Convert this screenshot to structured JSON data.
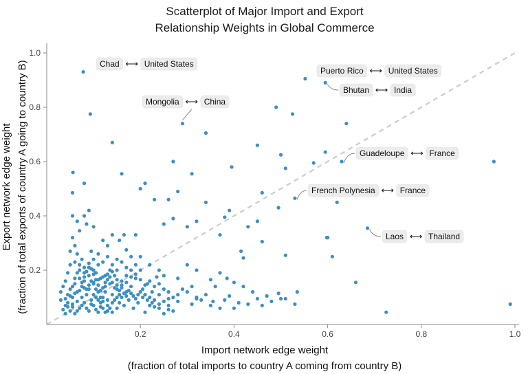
{
  "chart_data": {
    "type": "scatter",
    "title_lines": [
      "Scatterplot of Major Import and Export",
      "Relationship Weights in Global Commerce"
    ],
    "xlabel_lines": [
      "Import network edge weight",
      "(fraction of total imports to country A coming from country B)"
    ],
    "ylabel_lines": [
      "Export network edge weight",
      "(fraction of total exports of country A going to country B)"
    ],
    "xlim": [
      0,
      1.0
    ],
    "ylim": [
      0,
      1.0
    ],
    "x_ticks": [
      0.2,
      0.4,
      0.6,
      0.8,
      1.0
    ],
    "x_tick_labels": [
      "0.2",
      "0.4",
      "0.6",
      "0.8",
      "1.0"
    ],
    "y_ticks": [
      0.2,
      0.4,
      0.6,
      0.8,
      1.0
    ],
    "y_tick_labels": [
      "0.2",
      "0.4",
      "0.6",
      "0.8",
      "1.0"
    ],
    "reference_line": {
      "style": "dashed",
      "from": [
        0,
        0
      ],
      "to": [
        1,
        1
      ],
      "color": "#cfcfcf"
    },
    "grid": false,
    "point_color": "#3b8fc4",
    "annotations": [
      {
        "from": "Chad",
        "to": "United States",
        "x": 0.078,
        "y": 0.93
      },
      {
        "from": "Puerto Rico",
        "to": "United States",
        "x": 0.552,
        "y": 0.905
      },
      {
        "from": "Bhutan",
        "to": "India",
        "x": 0.595,
        "y": 0.89
      },
      {
        "from": "Mongolia",
        "to": "China",
        "x": 0.29,
        "y": 0.74
      },
      {
        "from": "Guadeloupe",
        "to": "France",
        "x": 0.63,
        "y": 0.6
      },
      {
        "from": "French Polynesia",
        "to": "France",
        "x": 0.53,
        "y": 0.465
      },
      {
        "from": "Laos",
        "to": "Thailand",
        "x": 0.685,
        "y": 0.355
      }
    ],
    "arrow_glyph": "⟷",
    "points": [
      [
        0.078,
        0.93
      ],
      [
        0.552,
        0.905
      ],
      [
        0.595,
        0.89
      ],
      [
        0.29,
        0.74
      ],
      [
        0.63,
        0.6
      ],
      [
        0.53,
        0.465
      ],
      [
        0.685,
        0.355
      ],
      [
        0.093,
        0.775
      ],
      [
        0.14,
        0.67
      ],
      [
        0.49,
        0.8
      ],
      [
        0.525,
        0.775
      ],
      [
        0.34,
        0.705
      ],
      [
        0.64,
        0.74
      ],
      [
        0.955,
        0.6
      ],
      [
        0.57,
        0.595
      ],
      [
        0.595,
        0.635
      ],
      [
        0.45,
        0.66
      ],
      [
        0.5,
        0.625
      ],
      [
        0.51,
        0.575
      ],
      [
        0.395,
        0.58
      ],
      [
        0.27,
        0.6
      ],
      [
        0.056,
        0.56
      ],
      [
        0.16,
        0.555
      ],
      [
        0.31,
        0.555
      ],
      [
        0.21,
        0.52
      ],
      [
        0.2,
        0.5
      ],
      [
        0.08,
        0.52
      ],
      [
        0.055,
        0.485
      ],
      [
        0.46,
        0.485
      ],
      [
        0.28,
        0.49
      ],
      [
        0.23,
        0.46
      ],
      [
        0.26,
        0.46
      ],
      [
        0.34,
        0.45
      ],
      [
        0.495,
        0.43
      ],
      [
        0.62,
        0.45
      ],
      [
        0.39,
        0.42
      ],
      [
        0.38,
        0.395
      ],
      [
        0.09,
        0.42
      ],
      [
        0.08,
        0.4
      ],
      [
        0.055,
        0.4
      ],
      [
        0.065,
        0.38
      ],
      [
        0.07,
        0.345
      ],
      [
        0.085,
        0.37
      ],
      [
        0.1,
        0.36
      ],
      [
        0.27,
        0.39
      ],
      [
        0.25,
        0.37
      ],
      [
        0.32,
        0.38
      ],
      [
        0.3,
        0.36
      ],
      [
        0.45,
        0.38
      ],
      [
        0.6,
        0.32
      ],
      [
        0.598,
        0.32
      ],
      [
        0.43,
        0.36
      ],
      [
        0.37,
        0.33
      ],
      [
        0.46,
        0.305
      ],
      [
        0.51,
        0.255
      ],
      [
        0.61,
        0.25
      ],
      [
        0.415,
        0.27
      ],
      [
        0.42,
        0.245
      ],
      [
        0.66,
        0.155
      ],
      [
        0.725,
        0.045
      ],
      [
        0.99,
        0.075
      ],
      [
        0.51,
        0.095
      ],
      [
        0.535,
        0.12
      ],
      [
        0.53,
        0.075
      ],
      [
        0.44,
        0.12
      ],
      [
        0.36,
        0.14
      ],
      [
        0.35,
        0.165
      ],
      [
        0.37,
        0.19
      ],
      [
        0.385,
        0.17
      ],
      [
        0.4,
        0.155
      ],
      [
        0.42,
        0.14
      ],
      [
        0.39,
        0.105
      ],
      [
        0.43,
        0.075
      ],
      [
        0.46,
        0.07
      ],
      [
        0.495,
        0.115
      ],
      [
        0.5,
        0.095
      ],
      [
        0.355,
        0.085
      ],
      [
        0.32,
        0.095
      ],
      [
        0.31,
        0.075
      ],
      [
        0.28,
        0.085
      ],
      [
        0.26,
        0.095
      ],
      [
        0.24,
        0.11
      ],
      [
        0.225,
        0.12
      ],
      [
        0.215,
        0.15
      ],
      [
        0.235,
        0.175
      ],
      [
        0.25,
        0.18
      ],
      [
        0.28,
        0.17
      ],
      [
        0.3,
        0.22
      ],
      [
        0.32,
        0.2
      ],
      [
        0.24,
        0.2
      ],
      [
        0.22,
        0.22
      ],
      [
        0.18,
        0.25
      ],
      [
        0.15,
        0.24
      ],
      [
        0.17,
        0.275
      ],
      [
        0.13,
        0.29
      ],
      [
        0.12,
        0.31
      ],
      [
        0.14,
        0.33
      ],
      [
        0.155,
        0.31
      ],
      [
        0.165,
        0.33
      ],
      [
        0.19,
        0.33
      ],
      [
        0.2,
        0.2
      ],
      [
        0.19,
        0.17
      ],
      [
        0.18,
        0.14
      ],
      [
        0.17,
        0.12
      ],
      [
        0.16,
        0.1
      ],
      [
        0.155,
        0.08
      ],
      [
        0.15,
        0.06
      ],
      [
        0.14,
        0.045
      ],
      [
        0.13,
        0.07
      ],
      [
        0.12,
        0.1
      ],
      [
        0.11,
        0.12
      ],
      [
        0.1,
        0.15
      ],
      [
        0.09,
        0.18
      ],
      [
        0.08,
        0.21
      ],
      [
        0.075,
        0.24
      ],
      [
        0.065,
        0.26
      ],
      [
        0.06,
        0.29
      ],
      [
        0.055,
        0.32
      ],
      [
        0.05,
        0.22
      ],
      [
        0.045,
        0.19
      ],
      [
        0.04,
        0.16
      ],
      [
        0.035,
        0.14
      ],
      [
        0.03,
        0.12
      ],
      [
        0.03,
        0.09
      ],
      [
        0.04,
        0.07
      ],
      [
        0.05,
        0.05
      ],
      [
        0.06,
        0.04
      ],
      [
        0.07,
        0.06
      ],
      [
        0.08,
        0.08
      ],
      [
        0.09,
        0.05
      ],
      [
        0.1,
        0.07
      ],
      [
        0.11,
        0.045
      ],
      [
        0.12,
        0.06
      ],
      [
        0.13,
        0.09
      ],
      [
        0.14,
        0.11
      ],
      [
        0.15,
        0.13
      ],
      [
        0.16,
        0.16
      ],
      [
        0.17,
        0.18
      ],
      [
        0.18,
        0.2
      ],
      [
        0.19,
        0.22
      ],
      [
        0.2,
        0.25
      ],
      [
        0.11,
        0.22
      ],
      [
        0.1,
        0.24
      ],
      [
        0.095,
        0.27
      ],
      [
        0.105,
        0.19
      ],
      [
        0.115,
        0.17
      ],
      [
        0.125,
        0.14
      ],
      [
        0.135,
        0.2
      ],
      [
        0.145,
        0.18
      ],
      [
        0.055,
        0.1
      ],
      [
        0.065,
        0.12
      ],
      [
        0.075,
        0.14
      ],
      [
        0.085,
        0.11
      ],
      [
        0.095,
        0.09
      ],
      [
        0.105,
        0.1
      ],
      [
        0.115,
        0.08
      ],
      [
        0.125,
        0.12
      ],
      [
        0.135,
        0.15
      ],
      [
        0.045,
        0.08
      ],
      [
        0.055,
        0.065
      ],
      [
        0.065,
        0.085
      ],
      [
        0.075,
        0.1
      ],
      [
        0.085,
        0.13
      ],
      [
        0.095,
        0.16
      ],
      [
        0.105,
        0.13
      ],
      [
        0.115,
        0.1
      ],
      [
        0.125,
        0.18
      ],
      [
        0.135,
        0.06
      ],
      [
        0.145,
        0.09
      ],
      [
        0.155,
        0.11
      ],
      [
        0.165,
        0.07
      ],
      [
        0.175,
        0.09
      ],
      [
        0.185,
        0.06
      ],
      [
        0.195,
        0.08
      ],
      [
        0.205,
        0.1
      ],
      [
        0.21,
        0.045
      ],
      [
        0.22,
        0.07
      ],
      [
        0.23,
        0.09
      ],
      [
        0.24,
        0.06
      ],
      [
        0.25,
        0.04
      ],
      [
        0.26,
        0.07
      ],
      [
        0.27,
        0.05
      ],
      [
        0.04,
        0.04
      ],
      [
        0.045,
        0.11
      ],
      [
        0.05,
        0.13
      ],
      [
        0.06,
        0.15
      ],
      [
        0.07,
        0.17
      ],
      [
        0.08,
        0.19
      ],
      [
        0.09,
        0.21
      ],
      [
        0.1,
        0.2
      ],
      [
        0.11,
        0.26
      ],
      [
        0.12,
        0.23
      ],
      [
        0.13,
        0.25
      ],
      [
        0.14,
        0.22
      ],
      [
        0.15,
        0.2
      ],
      [
        0.16,
        0.23
      ],
      [
        0.17,
        0.21
      ],
      [
        0.05,
        0.27
      ],
      [
        0.06,
        0.23
      ],
      [
        0.07,
        0.2
      ],
      [
        0.08,
        0.16
      ],
      [
        0.09,
        0.13
      ],
      [
        0.1,
        0.11
      ],
      [
        0.11,
        0.09
      ],
      [
        0.12,
        0.085
      ],
      [
        0.13,
        0.05
      ],
      [
        0.14,
        0.08
      ],
      [
        0.15,
        0.1
      ],
      [
        0.035,
        0.055
      ],
      [
        0.045,
        0.065
      ],
      [
        0.055,
        0.075
      ],
      [
        0.065,
        0.05
      ],
      [
        0.075,
        0.07
      ],
      [
        0.085,
        0.06
      ],
      [
        0.095,
        0.075
      ],
      [
        0.105,
        0.055
      ],
      [
        0.115,
        0.065
      ],
      [
        0.125,
        0.045
      ],
      [
        0.04,
        0.095
      ],
      [
        0.05,
        0.105
      ],
      [
        0.06,
        0.115
      ],
      [
        0.07,
        0.125
      ],
      [
        0.08,
        0.135
      ],
      [
        0.09,
        0.145
      ],
      [
        0.1,
        0.155
      ],
      [
        0.11,
        0.165
      ],
      [
        0.12,
        0.175
      ],
      [
        0.13,
        0.185
      ],
      [
        0.14,
        0.195
      ],
      [
        0.15,
        0.165
      ],
      [
        0.16,
        0.145
      ],
      [
        0.17,
        0.155
      ],
      [
        0.18,
        0.175
      ],
      [
        0.19,
        0.185
      ],
      [
        0.2,
        0.165
      ],
      [
        0.21,
        0.145
      ],
      [
        0.22,
        0.16
      ],
      [
        0.23,
        0.14
      ],
      [
        0.24,
        0.15
      ],
      [
        0.25,
        0.13
      ],
      [
        0.26,
        0.12
      ],
      [
        0.27,
        0.1
      ],
      [
        0.28,
        0.11
      ],
      [
        0.29,
        0.13
      ],
      [
        0.3,
        0.12
      ],
      [
        0.31,
        0.14
      ],
      [
        0.32,
        0.1
      ],
      [
        0.33,
        0.09
      ],
      [
        0.34,
        0.11
      ],
      [
        0.35,
        0.07
      ],
      [
        0.37,
        0.06
      ],
      [
        0.38,
        0.09
      ],
      [
        0.4,
        0.06
      ],
      [
        0.41,
        0.08
      ],
      [
        0.45,
        0.095
      ],
      [
        0.47,
        0.105
      ],
      [
        0.48,
        0.085
      ],
      [
        0.055,
        0.14
      ],
      [
        0.06,
        0.17
      ],
      [
        0.065,
        0.19
      ],
      [
        0.07,
        0.22
      ],
      [
        0.075,
        0.155
      ],
      [
        0.08,
        0.175
      ],
      [
        0.085,
        0.195
      ],
      [
        0.09,
        0.225
      ],
      [
        0.095,
        0.205
      ],
      [
        0.1,
        0.185
      ],
      [
        0.105,
        0.165
      ],
      [
        0.11,
        0.145
      ],
      [
        0.115,
        0.125
      ],
      [
        0.12,
        0.135
      ],
      [
        0.125,
        0.155
      ],
      [
        0.13,
        0.165
      ],
      [
        0.135,
        0.175
      ],
      [
        0.14,
        0.155
      ],
      [
        0.145,
        0.135
      ],
      [
        0.15,
        0.145
      ],
      [
        0.155,
        0.125
      ],
      [
        0.16,
        0.135
      ],
      [
        0.165,
        0.115
      ],
      [
        0.17,
        0.105
      ],
      [
        0.175,
        0.125
      ],
      [
        0.18,
        0.115
      ],
      [
        0.185,
        0.105
      ],
      [
        0.19,
        0.095
      ],
      [
        0.195,
        0.11
      ],
      [
        0.2,
        0.12
      ],
      [
        0.205,
        0.13
      ],
      [
        0.21,
        0.11
      ],
      [
        0.215,
        0.09
      ],
      [
        0.22,
        0.1
      ],
      [
        0.225,
        0.08
      ],
      [
        0.23,
        0.065
      ],
      [
        0.24,
        0.075
      ],
      [
        0.25,
        0.085
      ],
      [
        0.26,
        0.055
      ]
    ]
  }
}
